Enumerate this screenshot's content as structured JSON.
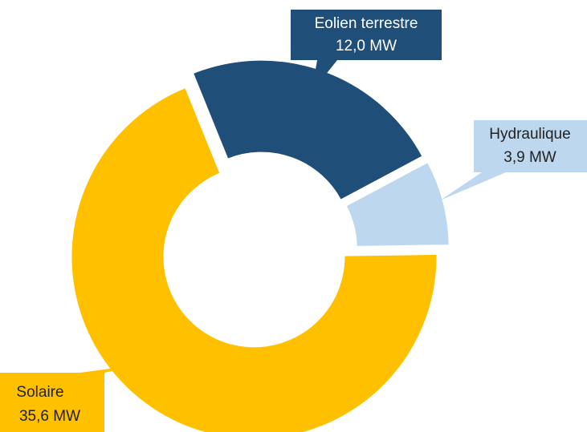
{
  "chart_data": {
    "type": "donut",
    "categories": [
      "Eolien terrestre",
      "Hydraulique",
      "Solaire"
    ],
    "values": [
      12.0,
      3.9,
      35.6
    ],
    "value_labels": [
      "12,0 MW",
      "3,9 MW",
      "35,6 MW"
    ],
    "colors": [
      "#1f4e79",
      "#bdd7ee",
      "#ffc000"
    ]
  }
}
